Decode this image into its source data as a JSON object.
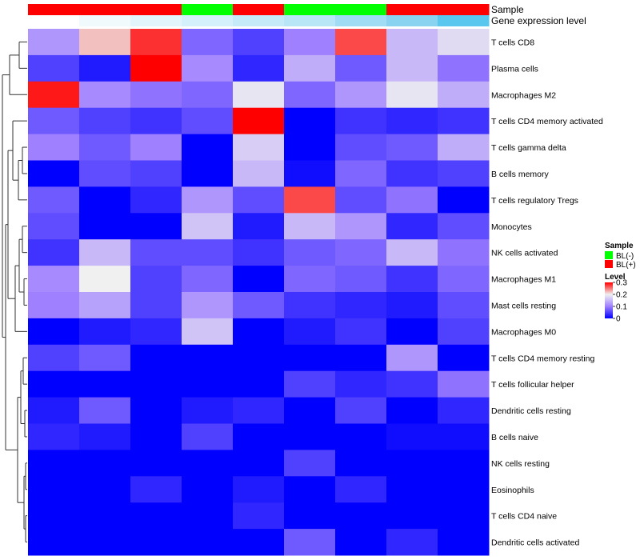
{
  "chart_data": {
    "type": "heatmap",
    "annotations": [
      {
        "name": "Sample",
        "values": [
          "BL(+)",
          "BL(+)",
          "BL(+)",
          "BL(-)",
          "BL(+)",
          "BL(-)",
          "BL(-)",
          "BL(+)",
          "BL(+)"
        ]
      },
      {
        "name": "Gene expression level",
        "colors": [
          "#ffffff",
          "#f0fafd",
          "#e2f5fb",
          "#d4f0fa",
          "#c6ebf8",
          "#b8e6f6",
          "#a0dcf3",
          "#8ad3f0",
          "#5ac8ee"
        ]
      }
    ],
    "rows": [
      "T cells CD8",
      "Plasma cells",
      "Macrophages M2",
      "T cells CD4 memory activated",
      "T cells gamma delta",
      "B cells memory",
      "T cells regulatory  Tregs",
      "Monocytes",
      "NK cells activated",
      "Macrophages M1",
      "Mast cells resting",
      "Macrophages M0",
      "T cells CD4 memory resting",
      "T cells follicular helper",
      "Dendritic cells resting",
      "B cells naive",
      "NK cells resting",
      "Eosinophils",
      "T cells CD4 naive",
      "Dendritic cells activated"
    ],
    "values": [
      [
        0.12,
        0.22,
        0.28,
        0.08,
        0.05,
        0.1,
        0.27,
        0.15,
        0.18
      ],
      [
        0.05,
        0.02,
        0.3,
        0.11,
        0.03,
        0.14,
        0.07,
        0.15,
        0.09
      ],
      [
        0.29,
        0.11,
        0.09,
        0.08,
        0.19,
        0.08,
        0.12,
        0.19,
        0.14
      ],
      [
        0.07,
        0.05,
        0.04,
        0.06,
        0.3,
        0.0,
        0.04,
        0.03,
        0.04
      ],
      [
        0.1,
        0.07,
        0.1,
        0.0,
        0.17,
        0.0,
        0.06,
        0.07,
        0.14
      ],
      [
        0.0,
        0.06,
        0.05,
        0.0,
        0.15,
        0.01,
        0.08,
        0.04,
        0.05
      ],
      [
        0.07,
        0.0,
        0.03,
        0.12,
        0.06,
        0.27,
        0.06,
        0.09,
        0.0
      ],
      [
        0.06,
        0.0,
        0.0,
        0.16,
        0.02,
        0.15,
        0.12,
        0.03,
        0.06
      ],
      [
        0.04,
        0.15,
        0.06,
        0.06,
        0.04,
        0.07,
        0.08,
        0.15,
        0.09
      ],
      [
        0.11,
        0.2,
        0.05,
        0.08,
        0.0,
        0.08,
        0.07,
        0.04,
        0.08
      ],
      [
        0.1,
        0.13,
        0.05,
        0.12,
        0.07,
        0.04,
        0.03,
        0.02,
        0.06
      ],
      [
        0.0,
        0.02,
        0.03,
        0.16,
        0.0,
        0.02,
        0.04,
        0.0,
        0.05
      ],
      [
        0.05,
        0.07,
        0.0,
        0.0,
        0.0,
        0.0,
        0.0,
        0.12,
        0.0
      ],
      [
        0.0,
        0.0,
        0.0,
        0.0,
        0.0,
        0.05,
        0.03,
        0.04,
        0.09
      ],
      [
        0.02,
        0.07,
        0.0,
        0.02,
        0.03,
        0.0,
        0.05,
        0.0,
        0.03
      ],
      [
        0.03,
        0.02,
        0.0,
        0.05,
        0.0,
        0.0,
        0.0,
        0.01,
        0.01
      ],
      [
        0.0,
        0.0,
        0.0,
        0.0,
        0.0,
        0.05,
        0.0,
        0.0,
        0.0
      ],
      [
        0.0,
        0.0,
        0.03,
        0.0,
        0.02,
        0.0,
        0.03,
        0.0,
        0.0
      ],
      [
        0.0,
        0.0,
        0.0,
        0.0,
        0.03,
        0.0,
        0.0,
        0.0,
        0.0
      ],
      [
        0.0,
        0.0,
        0.0,
        0.0,
        0.0,
        0.07,
        0.0,
        0.03,
        0.0
      ]
    ],
    "color_scale": {
      "domain": [
        0,
        0.1,
        0.2,
        0.3
      ],
      "colors": [
        "#0000ff",
        "#9f80ff",
        "#f0f0f0",
        "#ff0000"
      ]
    },
    "legend": {
      "sample_title": "Sample",
      "sample_items": [
        {
          "label": "BL(-)",
          "color": "#00ff00"
        },
        {
          "label": "BL(+)",
          "color": "#ff0000"
        }
      ],
      "level_title": "Level",
      "level_ticks": [
        "0",
        "0.1",
        "0.2",
        "0.3"
      ],
      "placement": "right"
    },
    "dendrogram": "left"
  }
}
